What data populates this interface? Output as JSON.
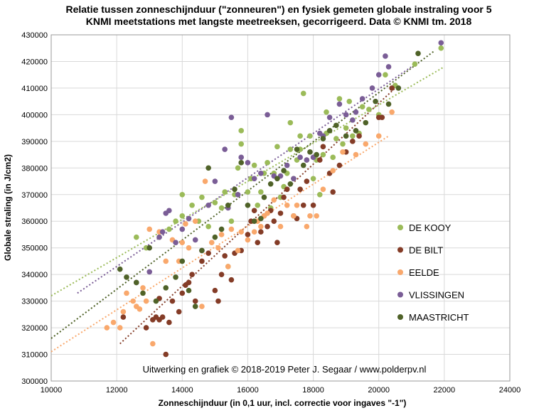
{
  "chart_data": {
    "type": "scatter",
    "title_line1": "Relatie tussen zonneschijnduur (\"zonneuren\") en fysiek gemeten globale instraling voor 5",
    "title_line2": "KNMI meetstations met langste meetreeksen, gecorrigeerd. Data © KNMI tm. 2018",
    "xlabel": "Zonneschijnduur (in 0,1 uur, incl. correctie voor ingaves \"-1\")",
    "ylabel": "Globale straling (in J/cm2)",
    "xlim": [
      10000,
      24000
    ],
    "ylim": [
      300000,
      430000
    ],
    "x_ticks": [
      "10000",
      "12000",
      "14000",
      "16000",
      "18000",
      "20000",
      "22000",
      "24000"
    ],
    "y_ticks": [
      "300000",
      "310000",
      "320000",
      "330000",
      "340000",
      "350000",
      "360000",
      "370000",
      "380000",
      "390000",
      "400000",
      "410000",
      "420000",
      "430000"
    ],
    "grid": true,
    "legend_position": "right",
    "credit": "Uitwerking en grafiek © 2018-2019 Peter J. Segaar / www.polderpv.nl",
    "series": [
      {
        "name": "DE KOOY",
        "color": "#9bbb59",
        "trend": [
          [
            10000,
            332000
          ],
          [
            22000,
            418000
          ]
        ],
        "points": [
          [
            12600,
            354000
          ],
          [
            12900,
            350000
          ],
          [
            13300,
            354000
          ],
          [
            13600,
            357000
          ],
          [
            13800,
            360000
          ],
          [
            14000,
            362000
          ],
          [
            14000,
            370000
          ],
          [
            14300,
            366000
          ],
          [
            14500,
            360000
          ],
          [
            14600,
            369000
          ],
          [
            14800,
            358000
          ],
          [
            15000,
            367000
          ],
          [
            15200,
            365000
          ],
          [
            15300,
            371000
          ],
          [
            15400,
            343000
          ],
          [
            15500,
            360000
          ],
          [
            15600,
            370000
          ],
          [
            15700,
            380000
          ],
          [
            15800,
            394000
          ],
          [
            15800,
            389000
          ],
          [
            16000,
            371000
          ],
          [
            16100,
            376000
          ],
          [
            16200,
            381000
          ],
          [
            16300,
            366000
          ],
          [
            16400,
            371000
          ],
          [
            16500,
            378000
          ],
          [
            16600,
            382000
          ],
          [
            16700,
            365000
          ],
          [
            16800,
            378000
          ],
          [
            16900,
            388000
          ],
          [
            17000,
            369000
          ],
          [
            17100,
            373000
          ],
          [
            17200,
            378000
          ],
          [
            17300,
            387000
          ],
          [
            17300,
            397000
          ],
          [
            17400,
            376000
          ],
          [
            17500,
            383000
          ],
          [
            17600,
            387000
          ],
          [
            17600,
            392000
          ],
          [
            17700,
            408000
          ],
          [
            17800,
            383000
          ],
          [
            17900,
            392000
          ],
          [
            18000,
            376000
          ],
          [
            18100,
            383000
          ],
          [
            18200,
            370000
          ],
          [
            18300,
            385000
          ],
          [
            18400,
            393000
          ],
          [
            18400,
            401000
          ],
          [
            18600,
            384000
          ],
          [
            18700,
            391000
          ],
          [
            18800,
            406000
          ],
          [
            18900,
            389000
          ],
          [
            19000,
            395000
          ],
          [
            19100,
            405000
          ],
          [
            19200,
            392000
          ],
          [
            19400,
            393000
          ],
          [
            19500,
            403000
          ],
          [
            19700,
            402000
          ],
          [
            20000,
            400000
          ],
          [
            20200,
            415000
          ],
          [
            20500,
            411000
          ],
          [
            21100,
            419000
          ],
          [
            21900,
            425000
          ]
        ]
      },
      {
        "name": "DE BILT",
        "color": "#843c27",
        "trend": [
          [
            12100,
            314000
          ],
          [
            20500,
            410000
          ]
        ],
        "points": [
          [
            12200,
            324000
          ],
          [
            12900,
            320000
          ],
          [
            13100,
            323000
          ],
          [
            13200,
            324000
          ],
          [
            13300,
            331000
          ],
          [
            13300,
            323000
          ],
          [
            13400,
            324000
          ],
          [
            13500,
            310000
          ],
          [
            13600,
            322000
          ],
          [
            13700,
            330000
          ],
          [
            13900,
            326000
          ],
          [
            14000,
            333000
          ],
          [
            14100,
            336000
          ],
          [
            14200,
            337000
          ],
          [
            14300,
            340000
          ],
          [
            14400,
            330000
          ],
          [
            14600,
            345000
          ],
          [
            14800,
            348000
          ],
          [
            15000,
            334000
          ],
          [
            15100,
            330000
          ],
          [
            15200,
            340000
          ],
          [
            15300,
            347000
          ],
          [
            15500,
            338000
          ],
          [
            15600,
            348000
          ],
          [
            15800,
            349000
          ],
          [
            16000,
            355000
          ],
          [
            16100,
            360000
          ],
          [
            16200,
            364000
          ],
          [
            16300,
            352000
          ],
          [
            16400,
            356000
          ],
          [
            16500,
            362000
          ],
          [
            16600,
            358000
          ],
          [
            16700,
            364000
          ],
          [
            16800,
            360000
          ],
          [
            16900,
            352000
          ],
          [
            17000,
            363000
          ],
          [
            17100,
            369000
          ],
          [
            17200,
            372000
          ],
          [
            17400,
            362000
          ],
          [
            17500,
            361000
          ],
          [
            17600,
            372000
          ],
          [
            17700,
            366000
          ],
          [
            17800,
            375000
          ],
          [
            18000,
            366000
          ],
          [
            18200,
            383000
          ],
          [
            18300,
            388000
          ],
          [
            18500,
            378000
          ],
          [
            18600,
            371000
          ],
          [
            18800,
            381000
          ],
          [
            19000,
            386000
          ],
          [
            19200,
            390000
          ],
          [
            19400,
            392000
          ],
          [
            20000,
            399000
          ],
          [
            20100,
            399000
          ],
          [
            20400,
            410000
          ]
        ]
      },
      {
        "name": "EELDE",
        "color": "#f9a86c",
        "trend": [
          [
            10000,
            311000
          ],
          [
            20300,
            392000
          ]
        ],
        "points": [
          [
            11700,
            320000
          ],
          [
            11900,
            322000
          ],
          [
            12100,
            320000
          ],
          [
            12200,
            326000
          ],
          [
            12300,
            333000
          ],
          [
            12500,
            330000
          ],
          [
            12600,
            328000
          ],
          [
            12700,
            327000
          ],
          [
            12800,
            335000
          ],
          [
            12900,
            330000
          ],
          [
            13000,
            357000
          ],
          [
            13100,
            314000
          ],
          [
            13300,
            356000
          ],
          [
            13500,
            345000
          ],
          [
            13700,
            353000
          ],
          [
            13900,
            345000
          ],
          [
            14000,
            352000
          ],
          [
            14100,
            359000
          ],
          [
            14200,
            350000
          ],
          [
            14400,
            360000
          ],
          [
            14600,
            328000
          ],
          [
            14700,
            375000
          ],
          [
            14900,
            352000
          ],
          [
            15100,
            350000
          ],
          [
            15200,
            355000
          ],
          [
            15400,
            343000
          ],
          [
            15500,
            357000
          ],
          [
            15700,
            349000
          ],
          [
            15800,
            356000
          ],
          [
            16000,
            353000
          ],
          [
            16200,
            356000
          ],
          [
            16300,
            360000
          ],
          [
            16400,
            358000
          ],
          [
            16500,
            362000
          ],
          [
            16600,
            363000
          ],
          [
            16800,
            368000
          ],
          [
            17000,
            358000
          ],
          [
            17200,
            366000
          ],
          [
            17400,
            362000
          ],
          [
            17500,
            366000
          ],
          [
            17800,
            358000
          ],
          [
            17900,
            362000
          ],
          [
            18100,
            362000
          ],
          [
            18300,
            372000
          ],
          [
            18600,
            379000
          ],
          [
            18900,
            386000
          ],
          [
            19300,
            385000
          ],
          [
            19600,
            389000
          ],
          [
            20000,
            392000
          ],
          [
            20400,
            401000
          ]
        ]
      },
      {
        "name": "VLISSINGEN",
        "color": "#7a5d96",
        "trend": [
          [
            10800,
            333000
          ],
          [
            21000,
            418000
          ]
        ],
        "points": [
          [
            12600,
            337000
          ],
          [
            13000,
            341000
          ],
          [
            13300,
            354000
          ],
          [
            13400,
            356000
          ],
          [
            13500,
            363000
          ],
          [
            13600,
            364000
          ],
          [
            13800,
            352000
          ],
          [
            14000,
            357000
          ],
          [
            14200,
            361000
          ],
          [
            14400,
            353000
          ],
          [
            14600,
            349000
          ],
          [
            14800,
            366000
          ],
          [
            15000,
            375000
          ],
          [
            15300,
            387000
          ],
          [
            15400,
            365000
          ],
          [
            15500,
            399000
          ],
          [
            15700,
            370000
          ],
          [
            15800,
            384000
          ],
          [
            16000,
            382000
          ],
          [
            16200,
            376000
          ],
          [
            16400,
            378000
          ],
          [
            16600,
            400000
          ],
          [
            16800,
            377000
          ],
          [
            17000,
            377000
          ],
          [
            17200,
            381000
          ],
          [
            17400,
            376000
          ],
          [
            17600,
            384000
          ],
          [
            17800,
            383000
          ],
          [
            18000,
            384000
          ],
          [
            18200,
            393000
          ],
          [
            18300,
            392000
          ],
          [
            18500,
            399000
          ],
          [
            18800,
            404000
          ],
          [
            19000,
            400000
          ],
          [
            19200,
            398000
          ],
          [
            19300,
            401000
          ],
          [
            19500,
            406000
          ],
          [
            19800,
            410000
          ],
          [
            20000,
            415000
          ],
          [
            20200,
            422000
          ],
          [
            20300,
            418000
          ],
          [
            21900,
            427000
          ]
        ]
      },
      {
        "name": "MAASTRICHT",
        "color": "#4f6228",
        "trend": [
          [
            10000,
            316000
          ],
          [
            21700,
            424000
          ]
        ],
        "points": [
          [
            12100,
            342000
          ],
          [
            12300,
            339000
          ],
          [
            12600,
            337000
          ],
          [
            12800,
            333000
          ],
          [
            13000,
            350000
          ],
          [
            13200,
            330000
          ],
          [
            13500,
            335000
          ],
          [
            13800,
            339000
          ],
          [
            14000,
            345000
          ],
          [
            14200,
            334000
          ],
          [
            14400,
            328000
          ],
          [
            14600,
            349000
          ],
          [
            14800,
            380000
          ],
          [
            15000,
            354000
          ],
          [
            15200,
            357000
          ],
          [
            15400,
            366000
          ],
          [
            15600,
            372000
          ],
          [
            15800,
            382000
          ],
          [
            16000,
            366000
          ],
          [
            16200,
            360000
          ],
          [
            16400,
            361000
          ],
          [
            16500,
            369000
          ],
          [
            16700,
            374000
          ],
          [
            16900,
            376000
          ],
          [
            17100,
            379000
          ],
          [
            17300,
            374000
          ],
          [
            17500,
            387000
          ],
          [
            17700,
            381000
          ],
          [
            17900,
            386000
          ],
          [
            18100,
            385000
          ],
          [
            18300,
            391000
          ],
          [
            18500,
            394000
          ],
          [
            18700,
            396000
          ],
          [
            19000,
            392000
          ],
          [
            19300,
            394000
          ],
          [
            19600,
            397000
          ],
          [
            19900,
            405000
          ],
          [
            20300,
            404000
          ],
          [
            20600,
            410000
          ],
          [
            21200,
            423000
          ]
        ]
      }
    ]
  }
}
